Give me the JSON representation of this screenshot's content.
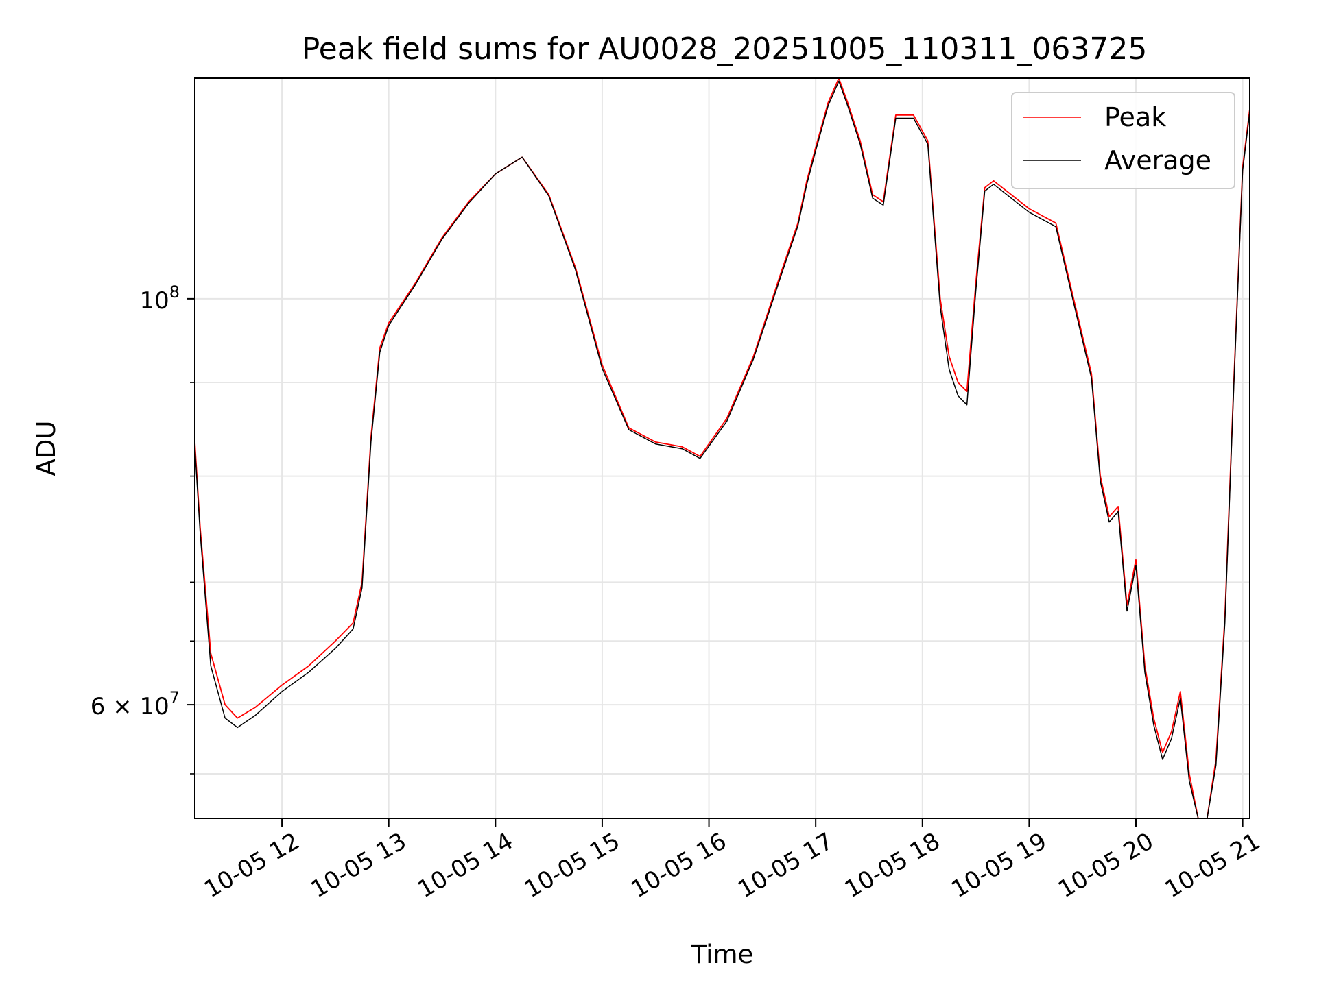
{
  "chart_data": {
    "type": "line",
    "title": "Peak field sums for AU0028_20251005_110311_063725",
    "xlabel": "Time",
    "ylabel": "ADU",
    "y_scale": "log",
    "ylim": [
      52000000,
      132000000
    ],
    "xlim": [
      "2025-10-05 11:11",
      "2025-10-05 21:04"
    ],
    "grid": true,
    "legend_position": "top-right",
    "colors": {
      "peak": "#ff0000",
      "average": "#000000",
      "grid": "#e6e6e6"
    },
    "x_ticks": [
      {
        "value": "2025-10-05 12:00",
        "label": "10-05 12"
      },
      {
        "value": "2025-10-05 13:00",
        "label": "10-05 13"
      },
      {
        "value": "2025-10-05 14:00",
        "label": "10-05 14"
      },
      {
        "value": "2025-10-05 15:00",
        "label": "10-05 15"
      },
      {
        "value": "2025-10-05 16:00",
        "label": "10-05 16"
      },
      {
        "value": "2025-10-05 17:00",
        "label": "10-05 17"
      },
      {
        "value": "2025-10-05 18:00",
        "label": "10-05 18"
      },
      {
        "value": "2025-10-05 19:00",
        "label": "10-05 19"
      },
      {
        "value": "2025-10-05 20:00",
        "label": "10-05 20"
      },
      {
        "value": "2025-10-05 21:00",
        "label": "10-05 21"
      }
    ],
    "y_ticks": [
      {
        "value": 100000000,
        "base": "10",
        "exp": "8"
      },
      {
        "value": 60000000,
        "mantissa": "6",
        "base": "10",
        "exp": "7"
      }
    ],
    "y_minor_ticks": [
      55000000,
      65000000,
      70000000,
      80000000,
      90000000
    ],
    "x": [
      "2025-10-05 11:11",
      "2025-10-05 11:14",
      "2025-10-05 11:20",
      "2025-10-05 11:28",
      "2025-10-05 11:35",
      "2025-10-05 11:45",
      "2025-10-05 12:00",
      "2025-10-05 12:15",
      "2025-10-05 12:30",
      "2025-10-05 12:40",
      "2025-10-05 12:45",
      "2025-10-05 12:50",
      "2025-10-05 12:55",
      "2025-10-05 13:00",
      "2025-10-05 13:15",
      "2025-10-05 13:30",
      "2025-10-05 13:45",
      "2025-10-05 14:00",
      "2025-10-05 14:15",
      "2025-10-05 14:30",
      "2025-10-05 14:45",
      "2025-10-05 15:00",
      "2025-10-05 15:15",
      "2025-10-05 15:30",
      "2025-10-05 15:45",
      "2025-10-05 15:55",
      "2025-10-05 16:10",
      "2025-10-05 16:25",
      "2025-10-05 16:40",
      "2025-10-05 16:50",
      "2025-10-05 16:55",
      "2025-10-05 17:00",
      "2025-10-05 17:07",
      "2025-10-05 17:13",
      "2025-10-05 17:18",
      "2025-10-05 17:25",
      "2025-10-05 17:32",
      "2025-10-05 17:38",
      "2025-10-05 17:45",
      "2025-10-05 17:55",
      "2025-10-05 18:03",
      "2025-10-05 18:10",
      "2025-10-05 18:15",
      "2025-10-05 18:20",
      "2025-10-05 18:25",
      "2025-10-05 18:30",
      "2025-10-05 18:35",
      "2025-10-05 18:40",
      "2025-10-05 19:00",
      "2025-10-05 19:15",
      "2025-10-05 19:25",
      "2025-10-05 19:35",
      "2025-10-05 19:40",
      "2025-10-05 19:45",
      "2025-10-05 19:50",
      "2025-10-05 19:55",
      "2025-10-05 20:00",
      "2025-10-05 20:05",
      "2025-10-05 20:10",
      "2025-10-05 20:15",
      "2025-10-05 20:20",
      "2025-10-05 20:25",
      "2025-10-05 20:30",
      "2025-10-05 20:35",
      "2025-10-05 20:40",
      "2025-10-05 20:45",
      "2025-10-05 20:50",
      "2025-10-05 20:55",
      "2025-10-05 21:00",
      "2025-10-05 21:04"
    ],
    "series": [
      {
        "name": "Peak",
        "values": [
          83500000,
          75000000,
          64000000,
          60000000,
          59000000,
          59800000,
          61500000,
          63000000,
          65000000,
          66500000,
          70000000,
          84000000,
          94000000,
          97000000,
          102000000,
          108000000,
          113000000,
          117000000,
          119500000,
          114000000,
          104000000,
          92000000,
          85000000,
          83500000,
          83000000,
          82000000,
          86000000,
          93000000,
          103000000,
          110000000,
          116000000,
          121000000,
          128000000,
          132000000,
          128000000,
          122000000,
          114000000,
          113000000,
          126000000,
          126000000,
          122000000,
          100000000,
          93000000,
          90000000,
          89000000,
          102000000,
          115000000,
          116000000,
          112000000,
          110000000,
          100000000,
          91000000,
          80000000,
          76000000,
          77000000,
          68000000,
          72000000,
          63000000,
          59000000,
          56500000,
          58000000,
          61000000,
          55000000,
          50500000,
          52000000,
          56000000,
          67000000,
          90000000,
          118000000,
          127000000
        ]
      },
      {
        "name": "Average",
        "values": [
          83000000,
          74500000,
          63000000,
          59000000,
          58300000,
          59200000,
          61000000,
          62500000,
          64400000,
          66000000,
          69500000,
          83500000,
          93500000,
          96700000,
          101800000,
          107800000,
          112800000,
          117000000,
          119500000,
          113800000,
          103700000,
          91600000,
          84800000,
          83300000,
          82800000,
          81800000,
          85700000,
          92700000,
          102600000,
          109600000,
          115500000,
          120500000,
          127500000,
          131500000,
          127500000,
          121500000,
          113500000,
          112500000,
          125500000,
          125500000,
          121500000,
          99000000,
          91500000,
          88500000,
          87500000,
          101000000,
          114500000,
          115500000,
          111500000,
          109500000,
          99500000,
          90500000,
          79500000,
          75500000,
          76500000,
          67500000,
          71500000,
          62500000,
          58500000,
          56000000,
          57500000,
          60500000,
          54500000,
          50200000,
          51600000,
          55600000,
          66500000,
          89500000,
          117500000,
          126500000
        ]
      }
    ]
  }
}
